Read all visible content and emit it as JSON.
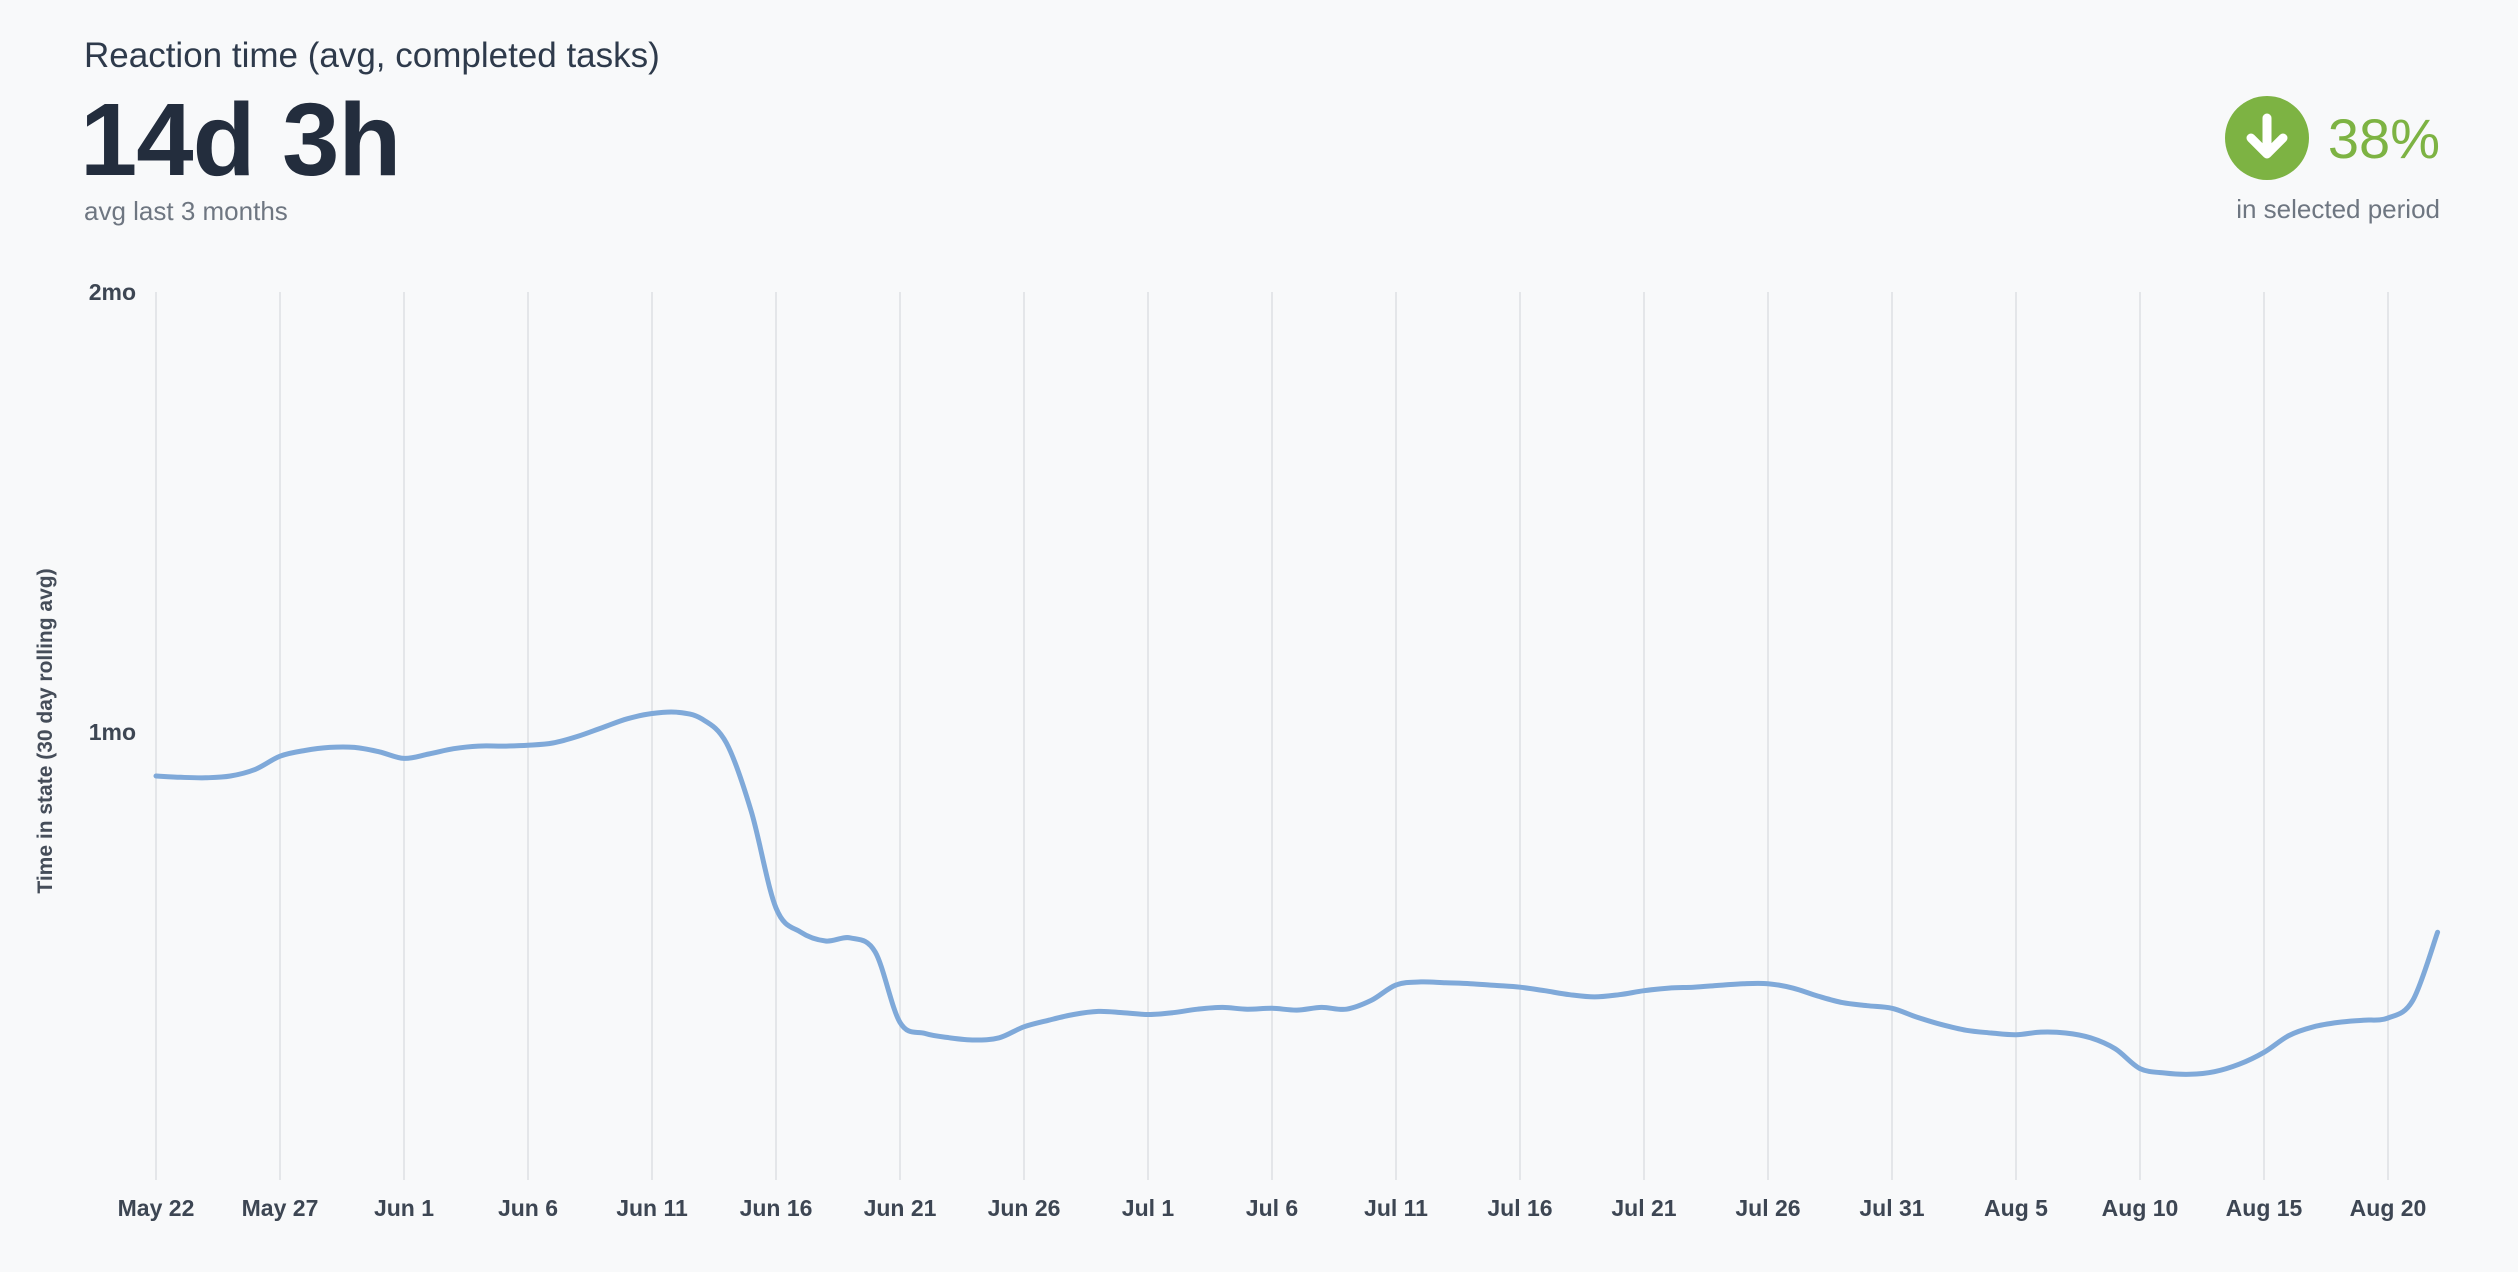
{
  "header": {
    "title": "Reaction time (avg, completed tasks)",
    "metric": {
      "value": "14d 3h",
      "caption": "avg last 3 months"
    },
    "delta": {
      "value": "38%",
      "caption": "in selected period",
      "direction": "down",
      "color": "#7db343"
    }
  },
  "chart_data": {
    "type": "line",
    "title": "Reaction time (avg, completed tasks)",
    "xlabel": "",
    "ylabel": "Time in state (30 day rolling avg)",
    "ylim": [
      0,
      2
    ],
    "y_unit": "months",
    "y_ticks": [
      {
        "value": 1,
        "label": "1mo"
      },
      {
        "value": 2,
        "label": "2mo"
      }
    ],
    "x_ticks": [
      {
        "day": 0,
        "label": "May 22"
      },
      {
        "day": 5,
        "label": "May 27"
      },
      {
        "day": 10,
        "label": "Jun 1"
      },
      {
        "day": 15,
        "label": "Jun 6"
      },
      {
        "day": 20,
        "label": "Jun 11"
      },
      {
        "day": 25,
        "label": "Jun 16"
      },
      {
        "day": 30,
        "label": "Jun 21"
      },
      {
        "day": 35,
        "label": "Jun 26"
      },
      {
        "day": 40,
        "label": "Jul 1"
      },
      {
        "day": 45,
        "label": "Jul 6"
      },
      {
        "day": 50,
        "label": "Jul 11"
      },
      {
        "day": 55,
        "label": "Jul 16"
      },
      {
        "day": 60,
        "label": "Jul 21"
      },
      {
        "day": 65,
        "label": "Jul 26"
      },
      {
        "day": 70,
        "label": "Jul 31"
      },
      {
        "day": 75,
        "label": "Aug 5"
      },
      {
        "day": 80,
        "label": "Aug 10"
      },
      {
        "day": 85,
        "label": "Aug 15"
      },
      {
        "day": 90,
        "label": "Aug 20"
      }
    ],
    "grid": "vertical-only",
    "legend": "none",
    "line_color": "#7fa9d9",
    "grid_color": "#e4e6e9",
    "x_unit": "days since first tick (May 22)",
    "x_start_day": 0,
    "x_step_days": 1,
    "series": [
      {
        "name": "Time in state (30 day rolling avg)",
        "unit": "months",
        "values": [
          0.9,
          0.897,
          0.896,
          0.9,
          0.915,
          0.945,
          0.958,
          0.965,
          0.965,
          0.955,
          0.94,
          0.95,
          0.962,
          0.968,
          0.968,
          0.97,
          0.975,
          0.99,
          1.01,
          1.03,
          1.042,
          1.045,
          1.03,
          0.975,
          0.82,
          0.6,
          0.545,
          0.525,
          0.532,
          0.5,
          0.34,
          0.315,
          0.305,
          0.3,
          0.305,
          0.33,
          0.345,
          0.358,
          0.365,
          0.362,
          0.358,
          0.362,
          0.37,
          0.374,
          0.37,
          0.372,
          0.368,
          0.374,
          0.37,
          0.39,
          0.425,
          0.432,
          0.43,
          0.428,
          0.424,
          0.42,
          0.412,
          0.403,
          0.398,
          0.403,
          0.412,
          0.418,
          0.42,
          0.424,
          0.428,
          0.428,
          0.418,
          0.4,
          0.385,
          0.378,
          0.372,
          0.352,
          0.335,
          0.322,
          0.316,
          0.312,
          0.318,
          0.316,
          0.305,
          0.28,
          0.235,
          0.225,
          0.222,
          0.228,
          0.245,
          0.272,
          0.31,
          0.33,
          0.34,
          0.345,
          0.35,
          0.39,
          0.545
        ]
      }
    ]
  }
}
